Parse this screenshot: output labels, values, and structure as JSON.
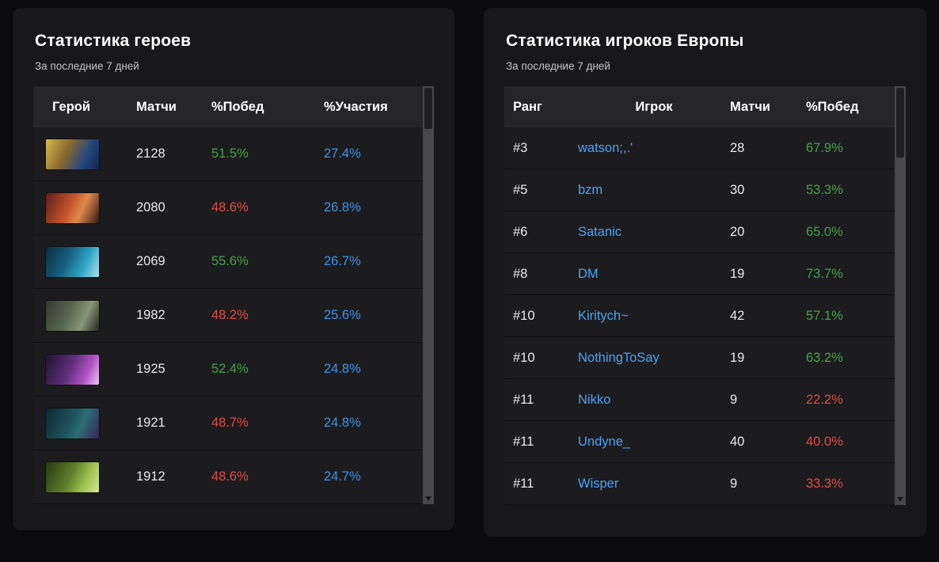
{
  "heroes_panel": {
    "title": "Статистика героев",
    "subtitle": "За последние 7 дней",
    "columns": {
      "hero": "Герой",
      "matches": "Матчи",
      "winrate": "%Побед",
      "pickrate": "%Участия"
    },
    "rows": [
      {
        "icon": "hero-icon-1",
        "matches": "2128",
        "winrate": "51.5%",
        "trend": "positive",
        "pickrate": "27.4%"
      },
      {
        "icon": "hero-icon-2",
        "matches": "2080",
        "winrate": "48.6%",
        "trend": "negative",
        "pickrate": "26.8%"
      },
      {
        "icon": "hero-icon-3",
        "matches": "2069",
        "winrate": "55.6%",
        "trend": "positive",
        "pickrate": "26.7%"
      },
      {
        "icon": "hero-icon-4",
        "matches": "1982",
        "winrate": "48.2%",
        "trend": "negative",
        "pickrate": "25.6%"
      },
      {
        "icon": "hero-icon-5",
        "matches": "1925",
        "winrate": "52.4%",
        "trend": "positive",
        "pickrate": "24.8%"
      },
      {
        "icon": "hero-icon-6",
        "matches": "1921",
        "winrate": "48.7%",
        "trend": "negative",
        "pickrate": "24.8%"
      },
      {
        "icon": "hero-icon-7",
        "matches": "1912",
        "winrate": "48.6%",
        "trend": "negative",
        "pickrate": "24.7%"
      }
    ]
  },
  "players_panel": {
    "title": "Статистика игроков Европы",
    "subtitle": "За последние 7 дней",
    "columns": {
      "rank": "Ранг",
      "player": "Игрок",
      "matches": "Матчи",
      "winrate": "%Побед"
    },
    "rows": [
      {
        "rank": "#3",
        "player": "watson;,.'",
        "matches": "28",
        "winrate": "67.9%",
        "trend": "positive"
      },
      {
        "rank": "#5",
        "player": "bzm",
        "matches": "30",
        "winrate": "53.3%",
        "trend": "positive"
      },
      {
        "rank": "#6",
        "player": "Satanic",
        "matches": "20",
        "winrate": "65.0%",
        "trend": "positive"
      },
      {
        "rank": "#8",
        "player": "DM",
        "matches": "19",
        "winrate": "73.7%",
        "trend": "positive"
      },
      {
        "rank": "#10",
        "player": "Kiritych~",
        "matches": "42",
        "winrate": "57.1%",
        "trend": "positive"
      },
      {
        "rank": "#10",
        "player": "NothingToSay",
        "matches": "19",
        "winrate": "63.2%",
        "trend": "positive"
      },
      {
        "rank": "#11",
        "player": "Nikko",
        "matches": "9",
        "winrate": "22.2%",
        "trend": "negative"
      },
      {
        "rank": "#11",
        "player": "Undyne_",
        "matches": "40",
        "winrate": "40.0%",
        "trend": "negative"
      },
      {
        "rank": "#11",
        "player": "Wisper",
        "matches": "9",
        "winrate": "33.3%",
        "trend": "negative"
      }
    ]
  },
  "colors": {
    "positive": "#45a049",
    "negative": "#e04d44",
    "pick": "#3f92e5",
    "link": "#4da2f0"
  }
}
